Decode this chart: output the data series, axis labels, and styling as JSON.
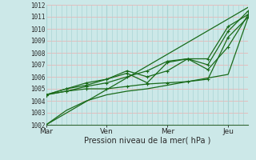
{
  "xlabel": "Pression niveau de la mer( hPa )",
  "ylim": [
    1002,
    1012
  ],
  "yticks": [
    1002,
    1003,
    1004,
    1005,
    1006,
    1007,
    1008,
    1009,
    1010,
    1011,
    1012
  ],
  "xtick_labels": [
    "Mar",
    "Ven",
    "Mer",
    "Jeu"
  ],
  "xtick_positions": [
    0,
    30,
    60,
    90
  ],
  "background_color": "#cce8e8",
  "grid_color_h": "#e8b8b8",
  "grid_color_v": "#aad4d4",
  "line_color": "#1a6b1a",
  "figsize": [
    3.2,
    2.0
  ],
  "dpi": 100,
  "xlim": [
    0,
    100
  ],
  "vline_positions": [
    0,
    30,
    60,
    90
  ],
  "line1_x": [
    0,
    100
  ],
  "line1_y": [
    1002.0,
    1011.8
  ],
  "line2_x": [
    0,
    10,
    20,
    30,
    40,
    50,
    60,
    70,
    80,
    90,
    100
  ],
  "line2_y": [
    1002.0,
    1003.2,
    1004.0,
    1004.5,
    1004.8,
    1005.0,
    1005.3,
    1005.6,
    1005.9,
    1006.2,
    1011.0
  ],
  "line3_x": [
    0,
    10,
    20,
    30,
    40,
    50,
    60,
    70,
    80,
    90,
    100
  ],
  "line3_y": [
    1004.5,
    1004.8,
    1005.0,
    1005.0,
    1005.2,
    1005.4,
    1005.5,
    1005.6,
    1005.8,
    1009.3,
    1011.0
  ],
  "line4_x": [
    0,
    10,
    20,
    30,
    40,
    50,
    60,
    70,
    80,
    90,
    100
  ],
  "line4_y": [
    1004.5,
    1005.0,
    1005.5,
    1005.8,
    1006.5,
    1006.0,
    1006.5,
    1007.5,
    1007.0,
    1009.8,
    1011.5
  ],
  "line5_x": [
    0,
    10,
    20,
    30,
    40,
    50,
    60,
    70,
    80,
    90,
    100
  ],
  "line5_y": [
    1004.5,
    1005.0,
    1005.3,
    1005.8,
    1006.3,
    1005.5,
    1007.2,
    1007.5,
    1006.6,
    1008.5,
    1011.2
  ],
  "line6_x": [
    0,
    10,
    20,
    30,
    40,
    50,
    60,
    70,
    80,
    90,
    100
  ],
  "line6_y": [
    1004.5,
    1004.8,
    1005.2,
    1005.5,
    1006.0,
    1006.5,
    1007.3,
    1007.5,
    1007.5,
    1010.2,
    1011.2
  ]
}
